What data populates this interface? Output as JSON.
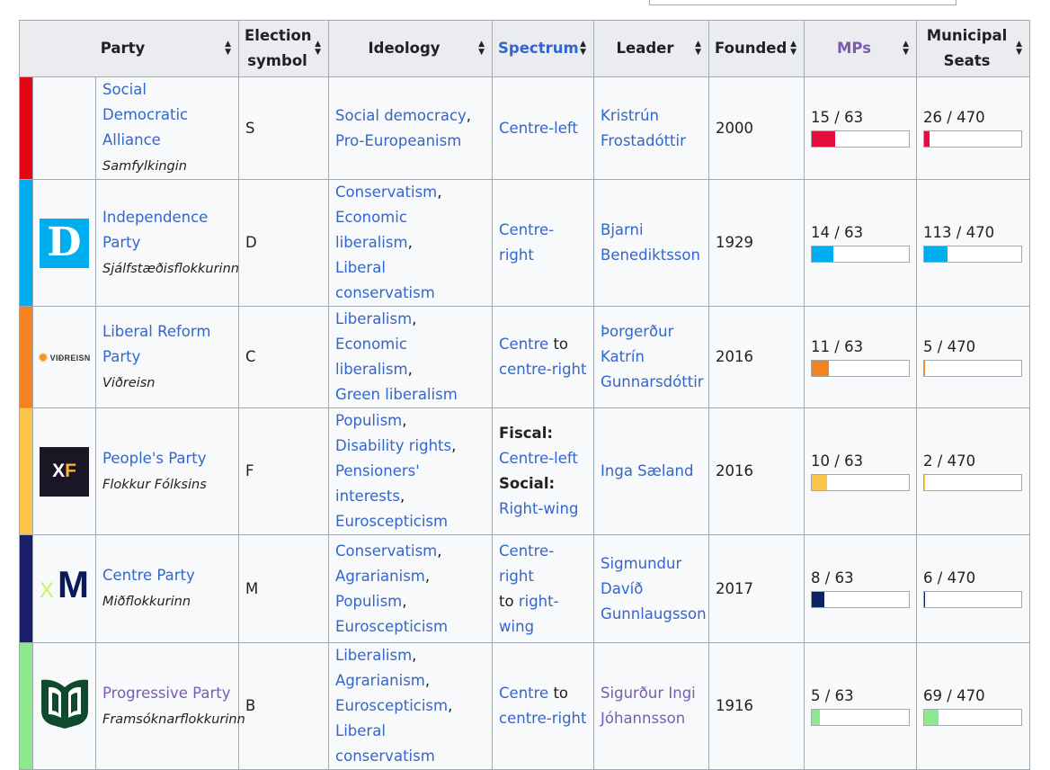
{
  "headers": {
    "party": "Party",
    "symbol_line1": "Election",
    "symbol_line2": "symbol",
    "ideology": "Ideology",
    "spectrum": "Spectrum",
    "leader": "Leader",
    "founded": "Founded",
    "mps": "MPs",
    "municipal_line1": "Municipal",
    "municipal_line2": "Seats"
  },
  "icons": {
    "sort": "sort-arrows-icon"
  },
  "rows": [
    {
      "color": "#e30613",
      "logo": "none",
      "name_line1": "Social Democratic",
      "name_line2": "Alliance",
      "native": "Samfylkingin",
      "symbol": "S",
      "ideology": [
        {
          "text": "Social democracy",
          "sep": ","
        },
        {
          "text": "Pro-Europeanism",
          "sep": ""
        }
      ],
      "spectrum": [
        {
          "link": "Centre-left"
        }
      ],
      "leader_line1": "Kristrún",
      "leader_line2": "Frostadóttir",
      "founded": "2000",
      "mps": "15 / 63",
      "mps_fraction": 0.238,
      "mps_color": "#e30e3e",
      "municipal": "26 / 470",
      "municipal_fraction": 0.055,
      "municipal_color": "#e30e3e"
    },
    {
      "color": "#00adef",
      "logo": "D",
      "name_line1": "Independence",
      "name_line2": "Party",
      "native": "Sjálfstæðisflokkurinn",
      "symbol": "D",
      "ideology": [
        {
          "text": "Conservatism",
          "sep": ","
        },
        {
          "text": "Economic liberalism",
          "sep": ","
        },
        {
          "text": "Liberal conservatism",
          "sep": ""
        }
      ],
      "spectrum": [
        {
          "link": "Centre-right"
        }
      ],
      "leader_line1": "Bjarni",
      "leader_line2": "Benediktsson",
      "founded": "1929",
      "mps": "14 / 63",
      "mps_fraction": 0.222,
      "mps_color": "#00adef",
      "municipal": "113 / 470",
      "municipal_fraction": 0.24,
      "municipal_color": "#00adef"
    },
    {
      "color": "#f58220",
      "logo": "VIÐREISN",
      "name_line1": "Liberal Reform",
      "name_line2": "Party",
      "native": "Viðreisn",
      "symbol": "C",
      "ideology": [
        {
          "text": "Liberalism",
          "sep": ","
        },
        {
          "text": "Economic liberalism",
          "sep": ","
        },
        {
          "text": "Green liberalism",
          "sep": ""
        }
      ],
      "spectrum": [
        {
          "link": "Centre",
          "plain": " to"
        },
        {
          "link": "centre-right"
        }
      ],
      "leader_line1": "Þorgerður",
      "leader_line2": "Katrín",
      "leader_line3": "Gunnarsdóttir",
      "founded": "2016",
      "mps": "11 / 63",
      "mps_fraction": 0.175,
      "mps_color": "#f58220",
      "municipal": "5 / 470",
      "municipal_fraction": 0.011,
      "municipal_color": "#f58220"
    },
    {
      "color": "#fcc44b",
      "logo": "XF",
      "name_line1": "People's Party",
      "native": "Flokkur Fólksins",
      "symbol": "F",
      "ideology": [
        {
          "text": "Populism",
          "sep": ","
        },
        {
          "text": "Disability rights",
          "sep": ","
        },
        {
          "text": "Pensioners' interests",
          "sep": ","
        },
        {
          "text": "Euroscepticism",
          "sep": ""
        }
      ],
      "spectrum_fiscal_label": "Fiscal:",
      "spectrum_fiscal": "Centre-left",
      "spectrum_social_label": "Social:",
      "spectrum_social": "Right-wing",
      "leader_line1": "Inga Sæland",
      "founded": "2016",
      "mps": "10 / 63",
      "mps_fraction": 0.159,
      "mps_color": "#fcc44b",
      "municipal": "2 / 470",
      "municipal_fraction": 0.004,
      "municipal_color": "#fcc44b"
    },
    {
      "color": "#1a1f6b",
      "logo": "M",
      "logo_x": "X",
      "name_line1": "Centre Party",
      "native": "Miðflokkurinn",
      "symbol": "M",
      "ideology": [
        {
          "text": "Conservatism",
          "sep": ","
        },
        {
          "text": "Agrarianism",
          "sep": ","
        },
        {
          "text": "Populism",
          "sep": ","
        },
        {
          "text": "Euroscepticism",
          "sep": ""
        }
      ],
      "spectrum": [
        {
          "link": "Centre-right"
        },
        {
          "plain_pre": "to ",
          "link": "right-wing"
        }
      ],
      "leader_line1": "Sigmundur",
      "leader_line2": "Davíð",
      "leader_line3": "Gunnlaugsson",
      "founded": "2017",
      "mps": "8 / 63",
      "mps_fraction": 0.127,
      "mps_color": "#0a2463",
      "municipal": "6 / 470",
      "municipal_fraction": 0.013,
      "municipal_color": "#0a2463"
    },
    {
      "color": "#8ee88e",
      "logo": "book",
      "name_line1": "Progressive Party",
      "native": "Framsóknarflokkurinn",
      "symbol": "B",
      "ideology": [
        {
          "text": "Liberalism",
          "sep": ","
        },
        {
          "text": "Agrarianism",
          "sep": ","
        },
        {
          "text": "Euroscepticism",
          "sep": ","
        },
        {
          "text": "Liberal conservatism",
          "sep": ""
        }
      ],
      "spectrum": [
        {
          "link": "Centre",
          "plain": " to"
        },
        {
          "link": "centre-right"
        }
      ],
      "leader_line1": "Sigurður Ingi",
      "leader_line2": "Jóhannsson",
      "founded": "1916",
      "mps": "5 / 63",
      "mps_fraction": 0.079,
      "mps_color": "#8ee88e",
      "municipal": "69 / 470",
      "municipal_fraction": 0.147,
      "municipal_color": "#8ee88e"
    }
  ]
}
